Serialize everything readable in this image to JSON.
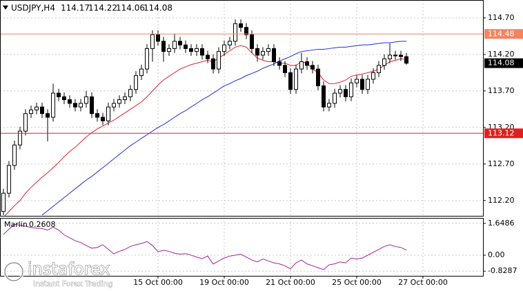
{
  "chart_data": {
    "type": "candlestick",
    "symbol": "USDJPY,H4",
    "open": [
      112.05,
      112.3,
      112.68,
      112.96,
      113.15,
      113.39,
      113.44,
      113.48,
      113.39,
      113.34,
      113.67,
      113.62,
      113.58,
      113.53,
      113.48,
      113.53,
      113.62,
      113.39,
      113.34,
      113.29,
      113.48,
      113.53,
      113.58,
      113.62,
      113.72,
      113.91,
      114.0,
      114.28,
      114.47,
      114.38,
      114.24,
      114.28,
      114.38,
      114.33,
      114.28,
      114.24,
      114.28,
      114.19,
      114.14,
      114.0,
      114.24,
      114.33,
      114.38,
      114.62,
      114.57,
      114.47,
      114.28,
      114.19,
      114.24,
      114.28,
      114.1,
      114.05,
      113.95,
      113.72,
      114.0,
      114.1,
      114.05,
      114.0,
      113.77,
      113.48,
      113.53,
      113.67,
      113.72,
      113.62,
      113.81,
      113.86,
      113.72,
      113.86,
      113.95,
      114.05,
      114.14,
      114.19,
      114.19,
      114.17
    ],
    "high": [
      112.36,
      112.74,
      113.02,
      113.21,
      113.45,
      113.5,
      113.54,
      113.54,
      113.45,
      113.8,
      113.73,
      113.68,
      113.64,
      113.59,
      113.59,
      113.7,
      113.68,
      113.45,
      113.4,
      113.54,
      113.59,
      113.64,
      113.68,
      113.78,
      113.97,
      114.06,
      114.34,
      114.53,
      114.53,
      114.44,
      114.34,
      114.48,
      114.44,
      114.39,
      114.34,
      114.34,
      114.34,
      114.25,
      114.2,
      114.3,
      114.39,
      114.44,
      114.68,
      114.68,
      114.63,
      114.53,
      114.34,
      114.3,
      114.34,
      114.34,
      114.16,
      114.11,
      114.01,
      114.06,
      114.22,
      114.16,
      114.11,
      114.06,
      113.83,
      113.59,
      113.73,
      113.78,
      113.78,
      113.87,
      113.92,
      113.92,
      113.92,
      114.01,
      114.11,
      114.2,
      114.35,
      114.25,
      114.25,
      114.22
    ],
    "low": [
      112.0,
      112.24,
      112.62,
      112.9,
      113.09,
      113.33,
      113.38,
      113.33,
      113.01,
      113.28,
      113.56,
      113.52,
      113.47,
      113.42,
      113.42,
      113.47,
      113.33,
      113.28,
      113.23,
      113.23,
      113.42,
      113.47,
      113.52,
      113.56,
      113.66,
      113.85,
      113.94,
      114.1,
      114.32,
      114.1,
      114.18,
      114.22,
      114.27,
      114.22,
      114.18,
      114.18,
      114.13,
      114.08,
      113.94,
      113.94,
      114.18,
      114.27,
      114.32,
      114.51,
      114.41,
      114.22,
      114.1,
      114.13,
      114.18,
      114.04,
      113.99,
      113.89,
      113.66,
      113.66,
      113.94,
      113.99,
      113.94,
      113.71,
      113.42,
      113.42,
      113.47,
      113.61,
      113.56,
      113.56,
      113.75,
      113.66,
      113.66,
      113.8,
      113.89,
      113.99,
      114.08,
      114.13,
      114.11,
      114.06
    ],
    "close": [
      112.3,
      112.68,
      112.96,
      113.15,
      113.39,
      113.44,
      113.48,
      113.39,
      113.34,
      113.67,
      113.62,
      113.58,
      113.53,
      113.48,
      113.53,
      113.62,
      113.39,
      113.34,
      113.29,
      113.48,
      113.53,
      113.58,
      113.62,
      113.72,
      113.91,
      114.0,
      114.28,
      114.47,
      114.38,
      114.24,
      114.28,
      114.38,
      114.33,
      114.28,
      114.24,
      114.28,
      114.19,
      114.14,
      114.0,
      114.24,
      114.33,
      114.38,
      114.62,
      114.57,
      114.47,
      114.28,
      114.19,
      114.24,
      114.28,
      114.1,
      114.05,
      113.95,
      113.72,
      114.0,
      114.1,
      114.05,
      114.0,
      113.77,
      113.48,
      113.53,
      113.67,
      113.72,
      113.62,
      113.81,
      113.86,
      113.72,
      113.86,
      113.95,
      114.05,
      114.14,
      114.19,
      114.19,
      114.17,
      114.08
    ],
    "overlays": [
      {
        "color": "#e0202a",
        "values": [
          111.97,
          112.05,
          112.13,
          112.2,
          112.3,
          112.38,
          112.45,
          112.52,
          112.58,
          112.65,
          112.72,
          112.8,
          112.87,
          112.93,
          113.0,
          113.07,
          113.13,
          113.18,
          113.22,
          113.26,
          113.3,
          113.35,
          113.4,
          113.45,
          113.5,
          113.55,
          113.62,
          113.7,
          113.78,
          113.85,
          113.9,
          113.95,
          114.0,
          114.03,
          114.06,
          114.08,
          114.1,
          114.12,
          114.1,
          114.15,
          114.2,
          114.25,
          114.3,
          114.32,
          114.3,
          114.22,
          114.15,
          114.12,
          114.1,
          114.1,
          114.08,
          114.08,
          114.05,
          114.05,
          114.1,
          114.08,
          114.0,
          113.95,
          113.85,
          113.8,
          113.8,
          113.82,
          113.85,
          113.9,
          113.92,
          113.93,
          113.95,
          113.97,
          114.0,
          114.05,
          114.1,
          114.12,
          114.14,
          114.13
        ]
      },
      {
        "color": "#1f2fd6",
        "values": [
          null,
          null,
          null,
          null,
          null,
          null,
          null,
          112.0,
          112.06,
          112.12,
          112.18,
          112.24,
          112.3,
          112.36,
          112.42,
          112.48,
          112.53,
          112.59,
          112.65,
          112.71,
          112.77,
          112.83,
          112.89,
          112.95,
          113.0,
          113.05,
          113.1,
          113.15,
          113.2,
          113.24,
          113.29,
          113.34,
          113.39,
          113.43,
          113.48,
          113.53,
          113.58,
          113.62,
          113.67,
          113.72,
          113.77,
          113.8,
          113.84,
          113.87,
          113.91,
          113.94,
          113.97,
          114.01,
          114.04,
          114.07,
          114.11,
          114.14,
          114.17,
          114.21,
          114.24,
          114.25,
          114.26,
          114.27,
          114.27,
          114.28,
          114.29,
          114.3,
          114.3,
          114.31,
          114.32,
          114.33,
          114.33,
          114.34,
          114.35,
          114.36,
          114.36,
          114.37,
          114.38,
          114.38
        ]
      }
    ],
    "levels": [
      {
        "value": 114.48,
        "color": "#f4845f"
      },
      {
        "value": 113.12,
        "color": "#e02020"
      }
    ],
    "ylim": [
      111.99,
      114.945
    ],
    "yticks": [
      {
        "value": 114.7,
        "label": "114.70"
      },
      {
        "value": 114.2,
        "label": "114.20"
      },
      {
        "value": 113.7,
        "label": "113.70"
      },
      {
        "value": 113.2,
        "label": "113.20"
      },
      {
        "value": 112.7,
        "label": "112.70"
      },
      {
        "value": 112.2,
        "label": "112.20"
      }
    ],
    "xlim": [
      -0.625,
      86.875
    ],
    "xticks": [
      {
        "value": 28,
        "label": "15 Oct 00:00"
      },
      {
        "value": 40,
        "label": "19 Oct 00:00"
      },
      {
        "value": 52,
        "label": "21 Oct 00:00"
      },
      {
        "value": 64,
        "label": "25 Oct 00:00"
      },
      {
        "value": 76,
        "label": "27 Oct 00:00"
      }
    ],
    "grid": true,
    "indicator": {
      "name": "Marlin",
      "color": "#a020a0",
      "values": [
        1.07,
        1.35,
        1.6,
        1.55,
        1.5,
        1.43,
        1.4,
        1.38,
        1.3,
        1.45,
        1.3,
        1.05,
        0.9,
        0.75,
        0.65,
        0.5,
        0.36,
        0.4,
        0.54,
        0.3,
        0.07,
        0.2,
        0.3,
        0.45,
        0.54,
        0.6,
        0.71,
        0.5,
        0.18,
        0.25,
        0.2,
        0.1,
        0.05,
        0.08,
        0.0,
        -0.1,
        -0.18,
        -0.05,
        -0.46,
        -0.3,
        -0.15,
        -0.05,
        0.0,
        0.05,
        -0.1,
        -0.25,
        -0.35,
        -0.2,
        -0.3,
        -0.4,
        -0.45,
        -0.55,
        -0.71,
        -0.4,
        -0.25,
        -0.45,
        -0.55,
        -0.65,
        -0.75,
        -0.5,
        -0.45,
        -0.35,
        -0.4,
        -0.15,
        -0.2,
        -0.15,
        0.0,
        0.15,
        0.3,
        0.45,
        0.54,
        0.45,
        0.4,
        0.2608
      ],
      "ylim": [
        -1.07,
        1.93
      ],
      "yticks": [
        1.6486,
        {
          "value": 0,
          "label": "0.00"
        },
        -0.8287
      ]
    },
    "watermark": {
      "brand": "instaforex",
      "tagline": "Instant Forex Trading"
    }
  }
}
